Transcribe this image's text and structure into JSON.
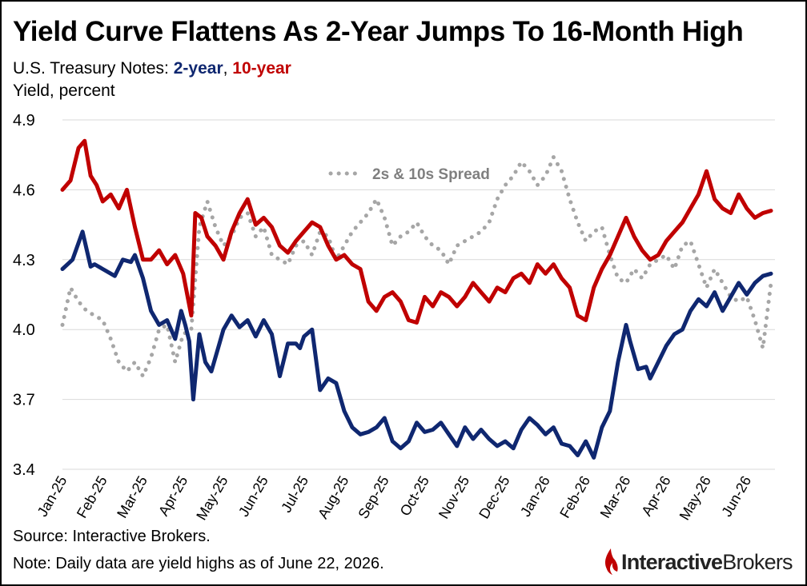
{
  "title": "Yield Curve Flattens As 2-Year Jumps To 16-Month High",
  "subtitle": {
    "prefix": "U.S. Treasury Notes: ",
    "two_year": "2-year",
    "separator": ", ",
    "ten_year": "10-year"
  },
  "ylabel": "Yield, percent",
  "source": "Source: Interactive Brokers.",
  "note": "Note: Daily data are yield highs as of June 22, 2026.",
  "logo": {
    "bold": "Interactive",
    "regular": "Brokers"
  },
  "colors": {
    "two_year": "#0f2770",
    "ten_year": "#c00000",
    "spread": "#a6a6a6",
    "grid": "#d9d9d9"
  },
  "chart_data": {
    "type": "line",
    "title": "Yield Curve Flattens As 2-Year Jumps To 16-Month High",
    "ylabel": "Yield, percent",
    "ylim": [
      3.4,
      4.9
    ],
    "yticks": [
      "3.4",
      "3.7",
      "4.0",
      "4.3",
      "4.6",
      "4.9"
    ],
    "grid": true,
    "x_tick_labels": [
      "Jan-25",
      "Feb-25",
      "Mar-25",
      "Apr-25",
      "May-25",
      "Jun-25",
      "Jul-25",
      "Aug-25",
      "Sep-25",
      "Oct-25",
      "Nov-25",
      "Dec-25",
      "Jan-26",
      "Feb-26",
      "Mar-26",
      "Apr-26",
      "May-26",
      "Jun-26"
    ],
    "x_range_months": [
      0,
      17.7
    ],
    "series": [
      {
        "name": "2-year",
        "x": [
          0,
          0.25,
          0.5,
          0.7,
          0.8,
          1.0,
          1.3,
          1.5,
          1.7,
          1.8,
          2.0,
          2.2,
          2.4,
          2.6,
          2.8,
          2.95,
          3.05,
          3.15,
          3.25,
          3.4,
          3.55,
          3.7,
          3.9,
          4.0,
          4.2,
          4.4,
          4.6,
          4.8,
          5.0,
          5.2,
          5.4,
          5.6,
          5.8,
          5.9,
          6.0,
          6.2,
          6.4,
          6.6,
          6.8,
          7.0,
          7.2,
          7.4,
          7.6,
          7.8,
          8.0,
          8.2,
          8.4,
          8.6,
          8.8,
          9.0,
          9.2,
          9.4,
          9.6,
          9.8,
          10.0,
          10.2,
          10.4,
          10.6,
          10.8,
          11.0,
          11.2,
          11.4,
          11.6,
          11.8,
          12.0,
          12.2,
          12.4,
          12.6,
          12.8,
          13.0,
          13.2,
          13.4,
          13.6,
          13.8,
          14.0,
          14.1,
          14.3,
          14.5,
          14.6,
          14.8,
          15.0,
          15.2,
          15.4,
          15.6,
          15.8,
          16.0,
          16.2,
          16.4,
          16.6,
          16.8,
          17.0,
          17.2,
          17.4,
          17.6
        ],
        "y": [
          4.26,
          4.3,
          4.42,
          4.27,
          4.28,
          4.26,
          4.23,
          4.3,
          4.29,
          4.32,
          4.22,
          4.08,
          4.02,
          4.04,
          3.96,
          4.08,
          4.02,
          3.95,
          3.7,
          3.98,
          3.86,
          3.82,
          3.94,
          4.0,
          4.06,
          4.01,
          4.04,
          3.97,
          4.04,
          3.98,
          3.8,
          3.94,
          3.94,
          3.92,
          3.97,
          4.0,
          3.74,
          3.79,
          3.77,
          3.65,
          3.58,
          3.55,
          3.56,
          3.58,
          3.62,
          3.52,
          3.49,
          3.52,
          3.6,
          3.56,
          3.57,
          3.6,
          3.55,
          3.5,
          3.58,
          3.53,
          3.57,
          3.53,
          3.5,
          3.52,
          3.49,
          3.57,
          3.62,
          3.59,
          3.55,
          3.58,
          3.51,
          3.5,
          3.46,
          3.52,
          3.45,
          3.58,
          3.65,
          3.86,
          4.02,
          3.95,
          3.83,
          3.84,
          3.79,
          3.86,
          3.93,
          3.98,
          4.0,
          4.08,
          4.13,
          4.1,
          4.16,
          4.08,
          4.14,
          4.2,
          4.15,
          4.2,
          4.23,
          4.24
        ]
      },
      {
        "name": "10-year",
        "x": [
          0,
          0.2,
          0.4,
          0.55,
          0.7,
          0.85,
          1.0,
          1.2,
          1.4,
          1.6,
          1.8,
          2.0,
          2.2,
          2.4,
          2.6,
          2.8,
          3.0,
          3.2,
          3.3,
          3.45,
          3.6,
          3.8,
          4.0,
          4.2,
          4.4,
          4.6,
          4.8,
          5.0,
          5.2,
          5.4,
          5.6,
          5.8,
          6.0,
          6.2,
          6.4,
          6.6,
          6.8,
          7.0,
          7.2,
          7.4,
          7.6,
          7.8,
          8.0,
          8.2,
          8.4,
          8.6,
          8.8,
          9.0,
          9.2,
          9.4,
          9.6,
          9.8,
          10.0,
          10.2,
          10.4,
          10.6,
          10.8,
          11.0,
          11.2,
          11.4,
          11.6,
          11.8,
          12.0,
          12.2,
          12.4,
          12.6,
          12.8,
          13.0,
          13.2,
          13.4,
          13.6,
          13.8,
          14.0,
          14.2,
          14.4,
          14.6,
          14.8,
          15.0,
          15.2,
          15.4,
          15.6,
          15.8,
          16.0,
          16.2,
          16.4,
          16.6,
          16.8,
          17.0,
          17.2,
          17.4,
          17.6
        ],
        "y": [
          4.6,
          4.64,
          4.78,
          4.81,
          4.66,
          4.62,
          4.55,
          4.58,
          4.52,
          4.6,
          4.44,
          4.3,
          4.3,
          4.34,
          4.28,
          4.32,
          4.24,
          4.06,
          4.5,
          4.48,
          4.4,
          4.36,
          4.3,
          4.42,
          4.5,
          4.56,
          4.45,
          4.48,
          4.44,
          4.36,
          4.33,
          4.38,
          4.42,
          4.46,
          4.44,
          4.36,
          4.3,
          4.32,
          4.28,
          4.26,
          4.12,
          4.08,
          4.14,
          4.16,
          4.12,
          4.04,
          4.03,
          4.14,
          4.1,
          4.16,
          4.14,
          4.1,
          4.14,
          4.2,
          4.16,
          4.12,
          4.18,
          4.16,
          4.22,
          4.24,
          4.2,
          4.28,
          4.24,
          4.28,
          4.22,
          4.18,
          4.06,
          4.04,
          4.18,
          4.26,
          4.32,
          4.4,
          4.48,
          4.4,
          4.34,
          4.3,
          4.32,
          4.38,
          4.42,
          4.46,
          4.52,
          4.58,
          4.68,
          4.56,
          4.52,
          4.5,
          4.58,
          4.52,
          4.48,
          4.5,
          4.51
        ]
      },
      {
        "name": "2s & 10s Spread",
        "x": [
          0,
          0.2,
          0.4,
          0.6,
          0.8,
          1.0,
          1.2,
          1.4,
          1.6,
          1.8,
          2.0,
          2.2,
          2.4,
          2.6,
          2.8,
          3.0,
          3.2,
          3.4,
          3.6,
          3.8,
          4.0,
          4.2,
          4.4,
          4.6,
          4.8,
          5.0,
          5.2,
          5.4,
          5.6,
          5.8,
          6.0,
          6.2,
          6.4,
          6.6,
          6.8,
          7.0,
          7.2,
          7.4,
          7.6,
          7.8,
          8.0,
          8.2,
          8.4,
          8.6,
          8.8,
          9.0,
          9.2,
          9.4,
          9.6,
          9.8,
          10.0,
          10.2,
          10.4,
          10.6,
          10.8,
          11.0,
          11.2,
          11.4,
          11.6,
          11.8,
          12.0,
          12.2,
          12.4,
          12.6,
          12.8,
          13.0,
          13.2,
          13.4,
          13.6,
          13.8,
          14.0,
          14.2,
          14.4,
          14.6,
          14.8,
          15.0,
          15.2,
          15.4,
          15.6,
          15.8,
          16.0,
          16.2,
          16.4,
          16.6,
          16.8,
          17.0,
          17.2,
          17.4,
          17.6
        ],
        "y": [
          4.02,
          4.18,
          4.12,
          4.08,
          4.06,
          4.04,
          3.96,
          3.86,
          3.82,
          3.86,
          3.8,
          3.88,
          4.0,
          4.02,
          3.86,
          3.98,
          4.0,
          4.44,
          4.55,
          4.44,
          4.36,
          4.4,
          4.48,
          4.5,
          4.4,
          4.44,
          4.32,
          4.3,
          4.28,
          4.36,
          4.38,
          4.32,
          4.42,
          4.4,
          4.3,
          4.36,
          4.42,
          4.46,
          4.5,
          4.56,
          4.48,
          4.36,
          4.4,
          4.42,
          4.46,
          4.4,
          4.36,
          4.34,
          4.28,
          4.36,
          4.38,
          4.4,
          4.42,
          4.46,
          4.56,
          4.62,
          4.66,
          4.72,
          4.68,
          4.62,
          4.66,
          4.74,
          4.68,
          4.56,
          4.46,
          4.38,
          4.42,
          4.44,
          4.32,
          4.22,
          4.2,
          4.26,
          4.22,
          4.28,
          4.3,
          4.32,
          4.26,
          4.36,
          4.38,
          4.28,
          4.18,
          4.26,
          4.2,
          4.14,
          4.12,
          4.14,
          4.04,
          3.92,
          4.2
        ]
      }
    ],
    "annotations": [
      "2s & 10s Spread"
    ]
  }
}
